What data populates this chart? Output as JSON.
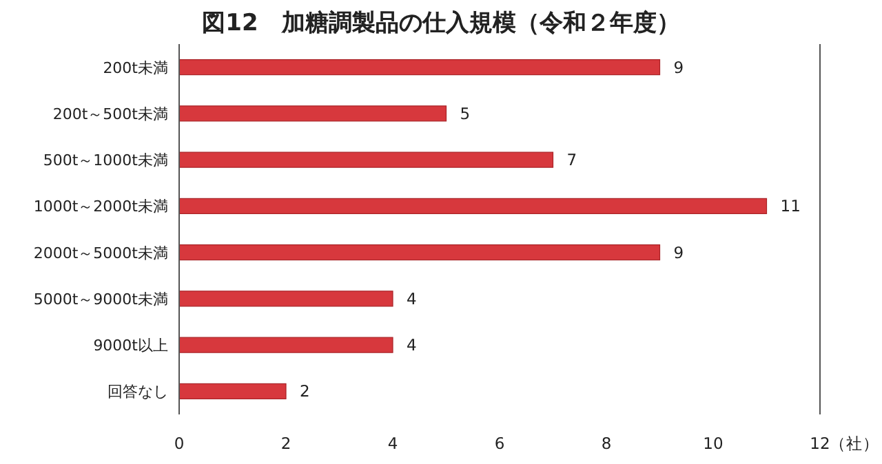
{
  "chart_data": {
    "type": "bar",
    "orientation": "horizontal",
    "title": "図12　加糖調製品の仕入規模（令和２年度）",
    "xlabel": "（社）",
    "categories": [
      "200t未満",
      "200t～500t未満",
      "500t～1000t未満",
      "1000t～2000t未満",
      "2000t～5000t未満",
      "5000t～9000t未満",
      "9000t以上",
      "回答なし"
    ],
    "values": [
      9,
      5,
      7,
      11,
      9,
      4,
      4,
      2
    ],
    "color": "#d7383d",
    "xlim": [
      0,
      12
    ],
    "xticks": [
      0,
      2,
      4,
      6,
      8,
      10,
      12
    ],
    "data_labels": true
  }
}
